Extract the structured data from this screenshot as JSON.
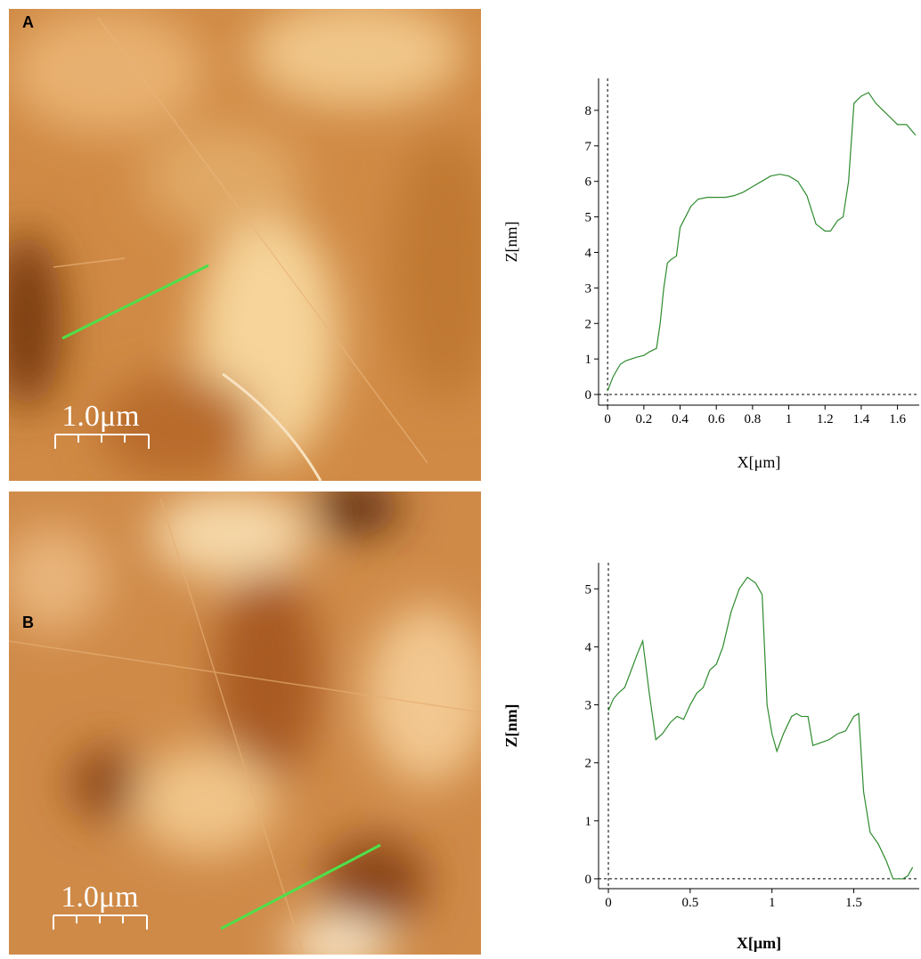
{
  "panels": [
    {
      "label": "A",
      "scale_bar": "1.0μm"
    },
    {
      "label": "B",
      "scale_bar": "1.0μm"
    }
  ],
  "chart_data": [
    {
      "type": "line",
      "xlabel": "X[μm]",
      "ylabel": "Z[nm]",
      "x": [
        0,
        0.03,
        0.07,
        0.1,
        0.13,
        0.16,
        0.2,
        0.23,
        0.27,
        0.29,
        0.31,
        0.33,
        0.35,
        0.38,
        0.4,
        0.43,
        0.46,
        0.5,
        0.55,
        0.6,
        0.65,
        0.7,
        0.75,
        0.8,
        0.85,
        0.9,
        0.95,
        1.0,
        1.05,
        1.1,
        1.15,
        1.2,
        1.23,
        1.27,
        1.3,
        1.33,
        1.36,
        1.4,
        1.44,
        1.48,
        1.52,
        1.56,
        1.6,
        1.65,
        1.7
      ],
      "series": [
        {
          "color": "#2e8b2e",
          "values": [
            0.1,
            0.5,
            0.85,
            0.95,
            1.0,
            1.05,
            1.1,
            1.2,
            1.3,
            2,
            3.0,
            3.7,
            3.8,
            3.9,
            4.7,
            5.0,
            5.3,
            5.5,
            5.55,
            5.55,
            5.55,
            5.6,
            5.7,
            5.85,
            6.0,
            6.15,
            6.2,
            6.15,
            6.0,
            5.6,
            4.8,
            4.6,
            4.6,
            4.9,
            5.0,
            6.0,
            8.2,
            8.4,
            8.5,
            8.2,
            8.0,
            7.8,
            7.6,
            7.6,
            7.3
          ]
        }
      ],
      "xlim": [
        -0.05,
        1.72
      ],
      "ylim": [
        -0.3,
        8.9
      ],
      "xticks": [
        0,
        0.2,
        0.4,
        0.6,
        0.8,
        1,
        1.2,
        1.4,
        1.6
      ],
      "yticks": [
        0,
        1,
        2,
        3,
        4,
        5,
        6,
        7,
        8
      ]
    },
    {
      "type": "line",
      "xlabel": "X[μm]",
      "ylabel": "Z[nm]",
      "x": [
        0,
        0.03,
        0.06,
        0.1,
        0.14,
        0.18,
        0.21,
        0.25,
        0.29,
        0.33,
        0.38,
        0.42,
        0.46,
        0.5,
        0.54,
        0.58,
        0.62,
        0.66,
        0.7,
        0.75,
        0.8,
        0.85,
        0.9,
        0.94,
        0.97,
        1.0,
        1.03,
        1.07,
        1.12,
        1.15,
        1.18,
        1.22,
        1.25,
        1.3,
        1.35,
        1.4,
        1.45,
        1.5,
        1.53,
        1.56,
        1.6,
        1.65,
        1.7,
        1.74,
        1.8,
        1.83,
        1.86
      ],
      "series": [
        {
          "color": "#2e8b2e",
          "values": [
            2.9,
            3.1,
            3.2,
            3.3,
            3.6,
            3.9,
            4.1,
            3.2,
            2.4,
            2.5,
            2.7,
            2.8,
            2.75,
            3.0,
            3.2,
            3.3,
            3.6,
            3.7,
            4.0,
            4.6,
            5.0,
            5.2,
            5.1,
            4.9,
            3.0,
            2.5,
            2.2,
            2.5,
            2.8,
            2.85,
            2.8,
            2.8,
            2.3,
            2.35,
            2.4,
            2.5,
            2.55,
            2.8,
            2.85,
            1.5,
            0.8,
            0.6,
            0.3,
            0.0,
            0.0,
            0.05,
            0.2
          ]
        }
      ],
      "xlim": [
        -0.06,
        1.9
      ],
      "ylim": [
        -0.17,
        5.45
      ],
      "xticks": [
        0,
        0.5,
        1,
        1.5
      ],
      "yticks": [
        0,
        1,
        2,
        3,
        4,
        5
      ]
    }
  ]
}
